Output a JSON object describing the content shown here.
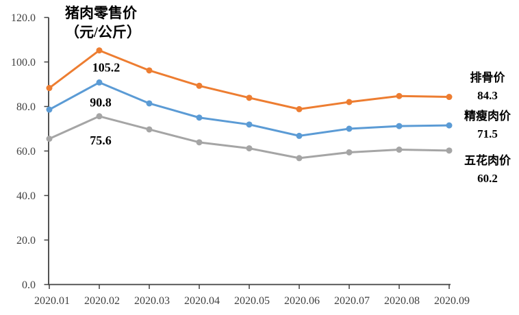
{
  "chart_data": {
    "type": "line",
    "title": "猪肉零售价",
    "unit": "（元/公斤）",
    "categories": [
      "2020.01",
      "2020.02",
      "2020.03",
      "2020.04",
      "2020.05",
      "2020.06",
      "2020.07",
      "2020.08",
      "2020.09"
    ],
    "y_axis": {
      "min": 0,
      "max": 120,
      "step": 20,
      "tick_labels": [
        "0.0",
        "20.0",
        "40.0",
        "60.0",
        "80.0",
        "100.0",
        "120.0"
      ]
    },
    "grid": false,
    "legend_position": "right-end-labels",
    "series": [
      {
        "name": "排骨价",
        "color": "#ED7D31",
        "values": [
          88.3,
          105.2,
          96.2,
          89.3,
          83.9,
          78.8,
          82.0,
          84.7,
          84.3
        ],
        "peak_label": "105.2",
        "end_label": "84.3"
      },
      {
        "name": "精瘦肉价",
        "color": "#5B9BD5",
        "values": [
          78.6,
          90.8,
          81.4,
          75.0,
          71.9,
          66.8,
          70.0,
          71.2,
          71.5
        ],
        "peak_label": "90.8",
        "end_label": "71.5"
      },
      {
        "name": "五花肉价",
        "color": "#A5A5A5",
        "values": [
          65.5,
          75.6,
          69.7,
          63.9,
          61.2,
          56.8,
          59.4,
          60.6,
          60.2
        ],
        "peak_label": "75.6",
        "end_label": "60.2"
      }
    ],
    "axis_color": "#404040",
    "label_color": "#000000"
  }
}
